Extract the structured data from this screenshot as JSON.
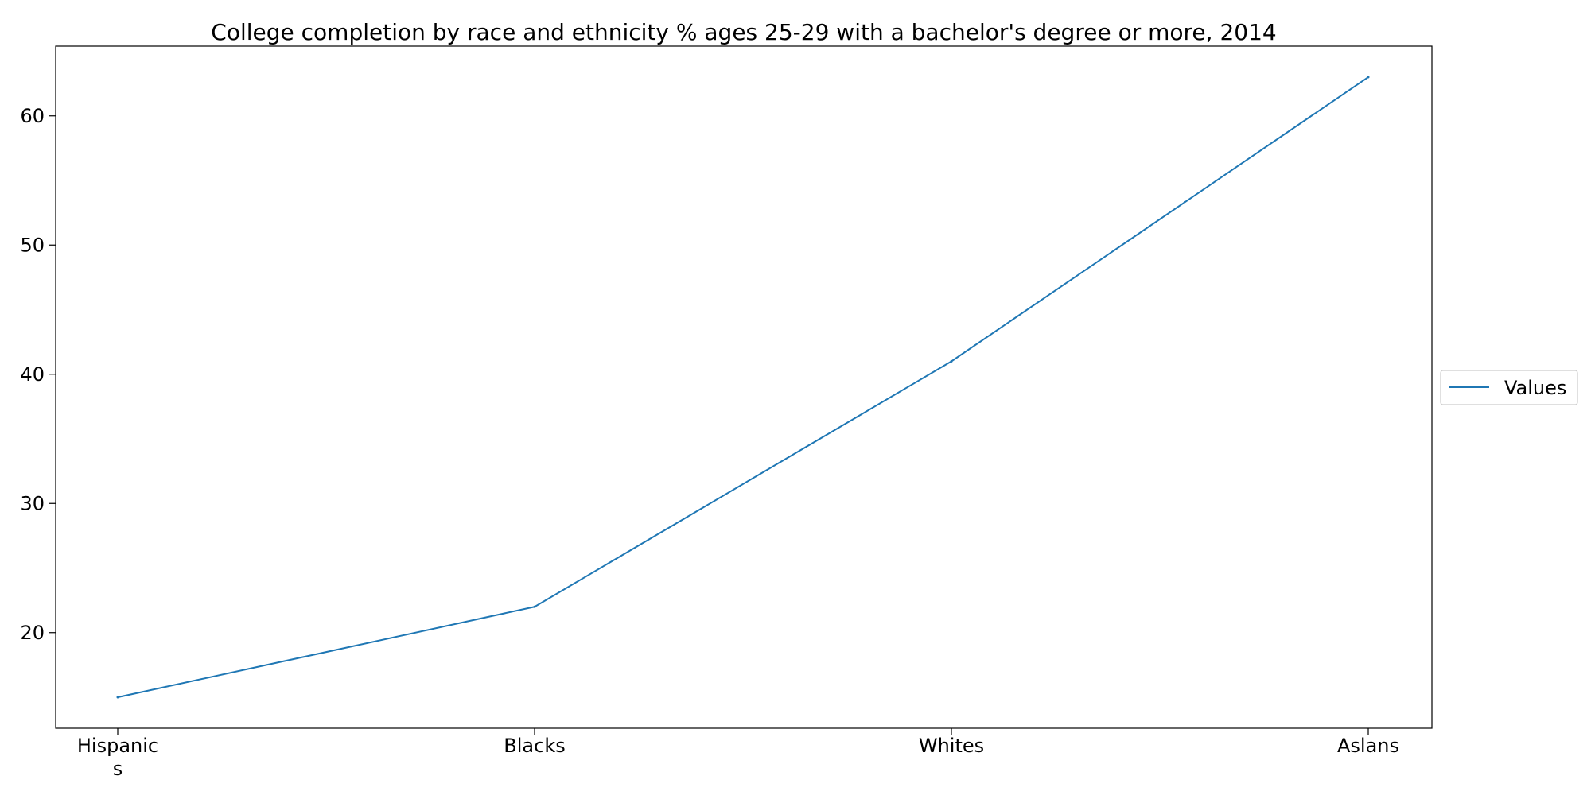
{
  "chart_data": {
    "type": "line",
    "title": "College completion by race and ethnicity % ages 25-29 with a bachelor's degree or more, 2014",
    "xlabel": "",
    "ylabel": "",
    "categories": [
      "Hispanic\ns",
      "Blacks",
      "Whites",
      "Aslans"
    ],
    "series": [
      {
        "name": "Values",
        "values": [
          15,
          22,
          41,
          63
        ],
        "color": "#1f77b4"
      }
    ],
    "ylim": [
      12.6,
      65.4
    ],
    "yticks": [
      20,
      30,
      40,
      50,
      60
    ],
    "grid": false,
    "legend": {
      "placement": "right, outside plot",
      "entries": [
        "Values"
      ]
    }
  }
}
